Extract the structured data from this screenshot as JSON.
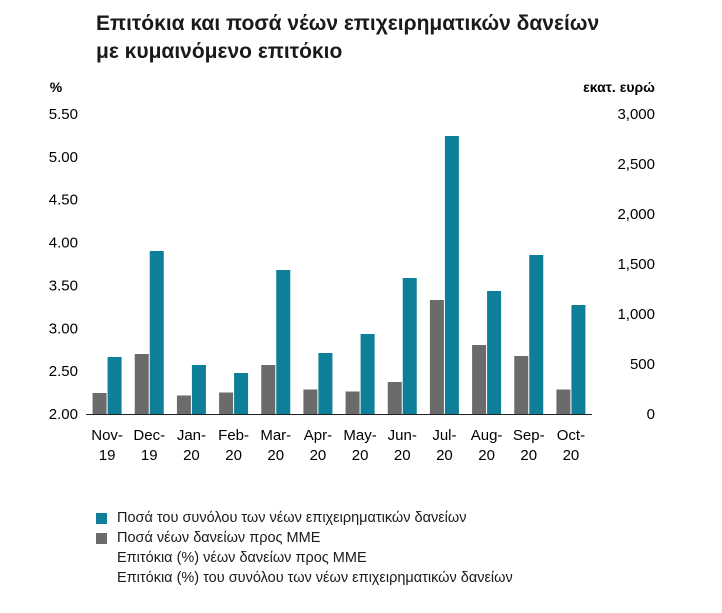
{
  "title_line1": "Επιτόκια και ποσά νέων επιχειρηματικών δανείων",
  "title_line2": "με κυμαινόμενο επιτόκιο",
  "chart_data": {
    "type": "bar",
    "left_axis_label": "%",
    "right_axis_label": "εκατ. ευρώ",
    "left_ylim": [
      2.0,
      5.5
    ],
    "left_ticks": [
      "5.50",
      "5.00",
      "4.50",
      "4.00",
      "3.50",
      "3.00",
      "2.50",
      "2.00"
    ],
    "right_ylim": [
      0,
      3000
    ],
    "right_ticks": [
      "3,000",
      "2,500",
      "2,000",
      "1,500",
      "1,000",
      "500",
      "0"
    ],
    "categories": [
      [
        "Nov-",
        "19"
      ],
      [
        "Dec-",
        "19"
      ],
      [
        "Jan-",
        "20"
      ],
      [
        "Feb-",
        "20"
      ],
      [
        "Mar-",
        "20"
      ],
      [
        "Apr-",
        "20"
      ],
      [
        "May-",
        "20"
      ],
      [
        "Jun-",
        "20"
      ],
      [
        "Jul-",
        "20"
      ],
      [
        "Aug-",
        "20"
      ],
      [
        "Sep-",
        "20"
      ],
      [
        "Oct-",
        "20"
      ]
    ],
    "series": [
      {
        "name": "Ποσά νέων δανείων προς ΜΜΕ",
        "axis": "right",
        "color": "#6b6b6b",
        "values": [
          210,
          600,
          185,
          215,
          490,
          245,
          225,
          320,
          1140,
          690,
          580,
          245
        ]
      },
      {
        "name": "Ποσά του συνόλου των νέων επιχειρηματικών δανείων",
        "axis": "right",
        "color": "#0e7f99",
        "values": [
          570,
          1630,
          490,
          410,
          1440,
          610,
          800,
          1360,
          2780,
          1230,
          1590,
          1090
        ]
      }
    ],
    "legend": [
      {
        "label": "Ποσά του συνόλου των νέων επιχειρηματικών δανείων",
        "color": "#0e7f99"
      },
      {
        "label": "Ποσά νέων δανείων προς ΜΜΕ",
        "color": "#6b6b6b"
      },
      {
        "label": "Επιτόκια (%) νέων δανείων προς ΜΜΕ",
        "color": ""
      },
      {
        "label": "Επιτόκια (%) του συνόλου των νέων επιχειρηματικών δανείων",
        "color": ""
      }
    ]
  }
}
